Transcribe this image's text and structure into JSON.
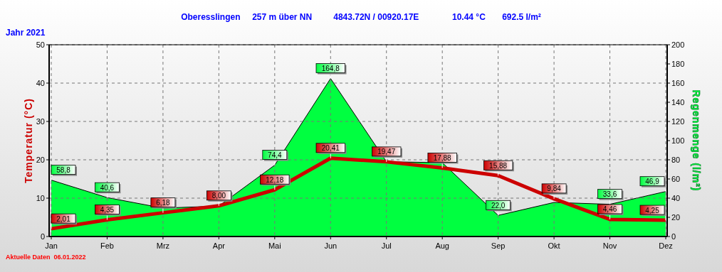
{
  "chart_data": {
    "type": "line",
    "title": "Oberesslingen     257 m über NN         4843.72N / 00920.17E              10.44 °C       692.5 l/m²",
    "subtitle": "Jahr 2021",
    "ylabel": "Temperatur (°C)",
    "y2label": "Regenmenge (l/m²)",
    "annotations": [
      "Aktuelle Daten  06.01.2022"
    ],
    "categories": [
      "Jan",
      "Feb",
      "Mrz",
      "Apr",
      "Mai",
      "Jun",
      "Jul",
      "Aug",
      "Sep",
      "Okt",
      "Nov",
      "Dez"
    ],
    "series": [
      {
        "name": null,
        "type": "area",
        "axis": "y2",
        "color": "#00ff40",
        "values": [
          58.8,
          40.6,
          29.6,
          31.8,
          74.4,
          164.8,
          78,
          77,
          22.0,
          35.5,
          33.6,
          46.9
        ],
        "value_labels": [
          "58,8",
          "40,6",
          null,
          null,
          "74,4",
          "164,8",
          null,
          null,
          "22,0",
          null,
          "33,6",
          "46,9"
        ]
      },
      {
        "name": null,
        "type": "line",
        "color": "#cc0000",
        "values": [
          2.01,
          4.35,
          6.18,
          8.0,
          12.18,
          20.41,
          19.47,
          17.88,
          15.88,
          9.84,
          4.46,
          4.25
        ],
        "value_labels": [
          "2,01",
          "4,35",
          "6,18",
          "8,00",
          "12,18",
          "20,41",
          "19,47",
          "17,88",
          "15,88",
          "9,84",
          "4,46",
          "4,25"
        ]
      }
    ],
    "ylim": [
      0,
      50
    ],
    "yticks": [
      0,
      10,
      20,
      30,
      40,
      50
    ],
    "y2lim": [
      0,
      200
    ],
    "y2ticks": [
      0,
      20,
      40,
      60,
      80,
      100,
      120,
      140,
      160,
      180,
      200
    ],
    "grid": true,
    "line_style": "solid",
    "marker": "none"
  }
}
